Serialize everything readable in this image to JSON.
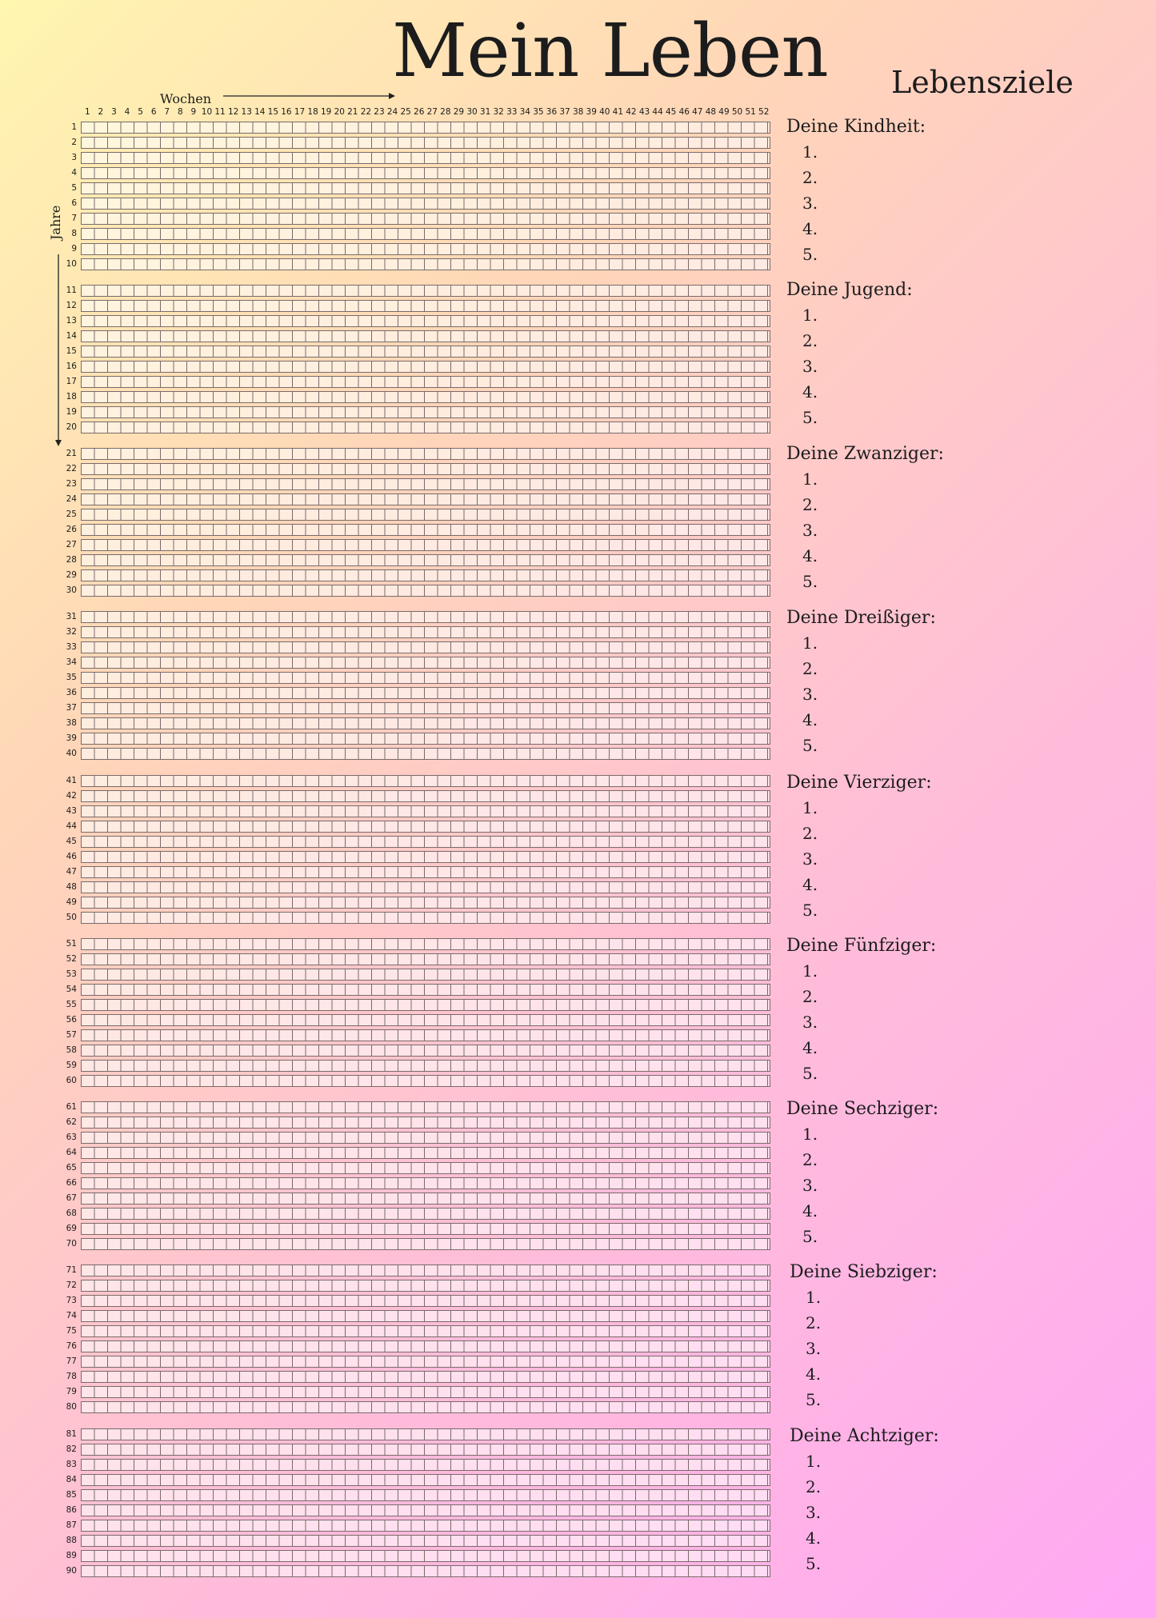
{
  "title": "Mein Leben",
  "goals_title": "Lebensziele",
  "weeks_label": "Wochen",
  "years_label": "Jahre",
  "weeks": [
    "1",
    "2",
    "3",
    "4",
    "5",
    "6",
    "7",
    "8",
    "9",
    "10",
    "11",
    "12",
    "13",
    "14",
    "15",
    "16",
    "17",
    "18",
    "19",
    "20",
    "21",
    "22",
    "23",
    "24",
    "25",
    "26",
    "27",
    "28",
    "29",
    "30",
    "31",
    "32",
    "33",
    "34",
    "35",
    "36",
    "37",
    "38",
    "39",
    "40",
    "41",
    "42",
    "43",
    "44",
    "45",
    "46",
    "47",
    "48",
    "49",
    "50",
    "51",
    "52"
  ],
  "years": [
    "1",
    "2",
    "3",
    "4",
    "5",
    "6",
    "7",
    "8",
    "9",
    "10",
    "11",
    "12",
    "13",
    "14",
    "15",
    "16",
    "17",
    "18",
    "19",
    "20",
    "21",
    "22",
    "23",
    "24",
    "25",
    "26",
    "27",
    "28",
    "29",
    "30",
    "31",
    "32",
    "33",
    "34",
    "35",
    "36",
    "37",
    "38",
    "39",
    "40",
    "41",
    "42",
    "43",
    "44",
    "45",
    "46",
    "47",
    "48",
    "49",
    "50",
    "51",
    "52",
    "53",
    "54",
    "55",
    "56",
    "57",
    "58",
    "59",
    "60",
    "61",
    "62",
    "63",
    "64",
    "65",
    "66",
    "67",
    "68",
    "69",
    "70",
    "71",
    "72",
    "73",
    "74",
    "75",
    "76",
    "77",
    "78",
    "79",
    "80",
    "81",
    "82",
    "83",
    "84",
    "85",
    "86",
    "87",
    "88",
    "89",
    "90"
  ],
  "decades": [
    {
      "title": "Deine Kindheit:",
      "goals": [
        "1.",
        "2.",
        "3.",
        "4.",
        "5."
      ]
    },
    {
      "title": "Deine Jugend:",
      "goals": [
        "1.",
        "2.",
        "3.",
        "4.",
        "5."
      ]
    },
    {
      "title": "Deine Zwanziger:",
      "goals": [
        "1.",
        "2.",
        "3.",
        "4.",
        "5."
      ]
    },
    {
      "title": "Deine Dreißiger:",
      "goals": [
        "1.",
        "2.",
        "3.",
        "4.",
        "5."
      ]
    },
    {
      "title": "Deine Vierziger:",
      "goals": [
        "1.",
        "2.",
        "3.",
        "4.",
        "5."
      ]
    },
    {
      "title": "Deine Fünfziger:",
      "goals": [
        "1.",
        "2.",
        "3.",
        "4.",
        "5."
      ]
    },
    {
      "title": "Deine Sechziger:",
      "goals": [
        "1.",
        "2.",
        "3.",
        "4.",
        "5."
      ]
    },
    {
      "title": "Deine Siebziger:",
      "goals": [
        "1.",
        "2.",
        "3.",
        "4.",
        "5."
      ]
    },
    {
      "title": "Deine Achtziger:",
      "goals": [
        "1.",
        "2.",
        "3.",
        "4.",
        "5."
      ]
    }
  ]
}
